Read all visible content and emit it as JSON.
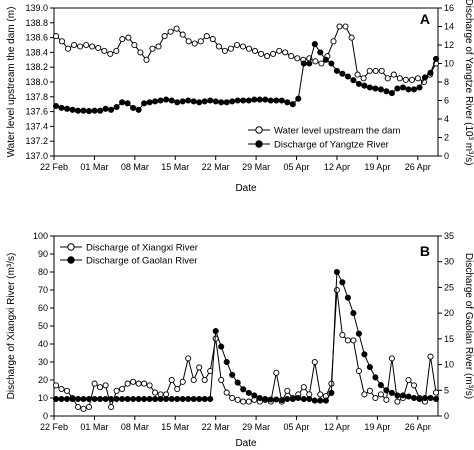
{
  "chart_data": [
    {
      "type": "line",
      "panel_label": "A",
      "x_tick_labels": [
        "22 Feb",
        "01 Mar",
        "08 Mar",
        "15 Mar",
        "22 Mar",
        "29 Mar",
        "05 Apr",
        "12 Apr",
        "19 Apr",
        "26 Apr"
      ],
      "xlabel": "Date",
      "ylabel": "Water level upstream the dam (m)",
      "ylim": [
        137.0,
        139.0
      ],
      "y_ticks": [
        "137.0",
        "137.2",
        "137.4",
        "137.6",
        "137.8",
        "138.0",
        "138.2",
        "138.4",
        "138.6",
        "138.8",
        "139.0"
      ],
      "ylabel_right": "Discharge of Yangtze River (10³ m³/s)",
      "ylim_right": [
        0,
        16
      ],
      "y_ticks_right": [
        "0",
        "2",
        "4",
        "6",
        "8",
        "10",
        "12",
        "14",
        "16"
      ],
      "legend_position": "bottom-right",
      "series": [
        {
          "name": "Water level upstream the dam",
          "axis": "left",
          "marker": "open-circle",
          "values": [
            138.62,
            138.55,
            138.45,
            138.5,
            138.48,
            138.5,
            138.48,
            138.46,
            138.42,
            138.38,
            138.42,
            138.58,
            138.6,
            138.5,
            138.4,
            138.3,
            138.45,
            138.48,
            138.62,
            138.68,
            138.72,
            138.64,
            138.55,
            138.52,
            138.55,
            138.62,
            138.58,
            138.48,
            138.42,
            138.45,
            138.5,
            138.48,
            138.45,
            138.42,
            138.38,
            138.35,
            138.38,
            138.42,
            138.4,
            138.35,
            138.32,
            138.3,
            138.32,
            138.28,
            138.25,
            138.35,
            138.55,
            138.75,
            138.75,
            138.6,
            138.1,
            138.05,
            138.15,
            138.15,
            138.15,
            138.05,
            138.1,
            138.05,
            138.03,
            138.03,
            138.05,
            138.0,
            138.1,
            138.25
          ]
        },
        {
          "name": "Discharge of Yangtze River",
          "axis": "right",
          "marker": "filled-circle",
          "values": [
            5.4,
            5.2,
            5.1,
            5.0,
            4.9,
            4.9,
            4.85,
            4.9,
            4.9,
            5.1,
            5.0,
            5.3,
            5.8,
            5.7,
            5.2,
            5.0,
            5.7,
            5.8,
            5.9,
            6.0,
            6.1,
            6.0,
            5.8,
            5.9,
            6.0,
            5.9,
            5.8,
            5.9,
            6.0,
            5.9,
            5.8,
            5.8,
            5.9,
            6.0,
            6.0,
            6.0,
            6.1,
            6.1,
            6.1,
            6.0,
            6.0,
            6.0,
            5.8,
            5.6,
            6.2,
            10.0,
            10.0,
            12.1,
            11.2,
            10.4,
            10.0,
            9.2,
            8.9,
            8.6,
            8.2,
            7.8,
            7.6,
            7.4,
            7.3,
            7.2,
            7.0,
            6.8,
            7.3,
            7.4,
            7.2,
            7.2,
            7.4,
            8.5,
            9.0,
            10.5
          ]
        }
      ]
    },
    {
      "type": "line",
      "panel_label": "B",
      "x_tick_labels": [
        "22 Feb",
        "01 Mar",
        "08 Mar",
        "15 Mar",
        "22 Mar",
        "29 Mar",
        "05 Apr",
        "12 Apr",
        "19 Apr",
        "26 Apr"
      ],
      "xlabel": "Date",
      "ylabel": "Discharge of Xiangxi River (m³/s)",
      "ylim": [
        0,
        100
      ],
      "y_ticks": [
        "0",
        "10",
        "20",
        "30",
        "40",
        "50",
        "60",
        "70",
        "80",
        "90",
        "100"
      ],
      "ylabel_right": "Discharge of Gaolan River (m³/s)",
      "ylim_right": [
        0,
        35
      ],
      "y_ticks_right": [
        "0",
        "5",
        "10",
        "15",
        "20",
        "25",
        "30",
        "35"
      ],
      "legend_position": "top-left",
      "series": [
        {
          "name": "Discharge of Xiangxi River",
          "axis": "left",
          "marker": "open-circle",
          "values": [
            17,
            15,
            14,
            10,
            5,
            4,
            5,
            18,
            16,
            17,
            5,
            14,
            15,
            18,
            19,
            18,
            18,
            17,
            13,
            12,
            12,
            20,
            15,
            19,
            32,
            20,
            27,
            20,
            25,
            43,
            20,
            13,
            10,
            9,
            8,
            8,
            9,
            8,
            9,
            8,
            24,
            8,
            14,
            10,
            12,
            16,
            12,
            30,
            12,
            11,
            18,
            70,
            45,
            42,
            42,
            25,
            12,
            14,
            10,
            12,
            9,
            32,
            8,
            10,
            20,
            17,
            10,
            8,
            33,
            13
          ]
        },
        {
          "name": "Discharge of Gaolan River",
          "axis": "right",
          "marker": "filled-circle",
          "values": [
            3.3,
            3.3,
            3.3,
            3.3,
            3.3,
            3.3,
            3.3,
            3.3,
            3.3,
            3.3,
            3.3,
            3.3,
            3.3,
            3.3,
            3.3,
            3.3,
            3.3,
            3.3,
            3.3,
            3.3,
            3.3,
            3.3,
            3.3,
            3.3,
            3.3,
            3.3,
            3.3,
            3.3,
            3.3,
            16.5,
            13.5,
            10.5,
            8.0,
            6.5,
            5.2,
            4.5,
            4.0,
            3.5,
            3.3,
            3.2,
            3.2,
            3.1,
            3.3,
            3.3,
            3.5,
            3.3,
            3.3,
            3.0,
            3.0,
            3.0,
            4.5,
            28.0,
            26.0,
            23.0,
            20.0,
            16.0,
            12.0,
            9.5,
            7.5,
            6.0,
            5.0,
            4.5,
            4.0,
            4.0,
            3.8,
            3.5,
            3.3,
            3.5,
            3.5,
            3.3
          ]
        }
      ]
    }
  ]
}
